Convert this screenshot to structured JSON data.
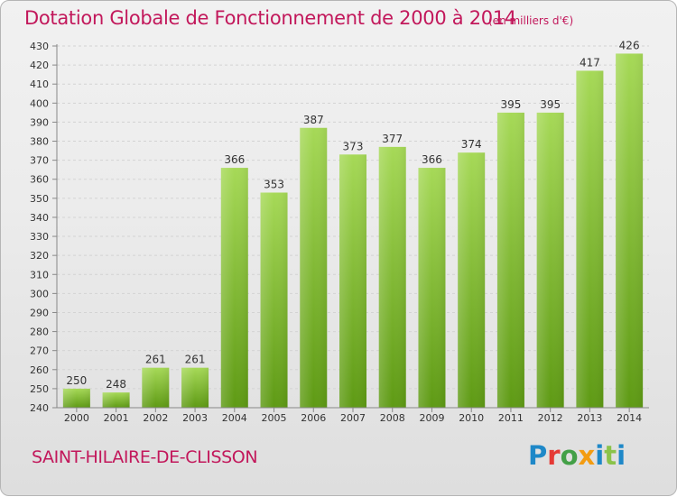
{
  "header": {
    "title": "Dotation Globale de Fonctionnement de 2000 à 2014",
    "subtitle": "(en milliers d'€)"
  },
  "footer": {
    "place": "SAINT-HILAIRE-DE-CLISSON",
    "logo": {
      "p": "P",
      "r": "r",
      "o": "o",
      "x": "x",
      "i": "i",
      "t": "t",
      "i2": "i"
    }
  },
  "colors": {
    "title": "#c2185b",
    "bar_light": "#a6d957",
    "bar_dark": "#5e9a14"
  },
  "chart_data": {
    "type": "bar",
    "categories": [
      "2000",
      "2001",
      "2002",
      "2003",
      "2004",
      "2005",
      "2006",
      "2007",
      "2008",
      "2009",
      "2010",
      "2011",
      "2012",
      "2013",
      "2014"
    ],
    "values": [
      250,
      248,
      261,
      261,
      366,
      353,
      387,
      373,
      377,
      366,
      374,
      395,
      395,
      417,
      426
    ],
    "ylim": [
      240,
      430
    ],
    "yticks": [
      240,
      250,
      260,
      270,
      280,
      290,
      300,
      310,
      320,
      330,
      340,
      350,
      360,
      370,
      380,
      390,
      400,
      410,
      420,
      430
    ],
    "grid": true,
    "legend": "none"
  }
}
